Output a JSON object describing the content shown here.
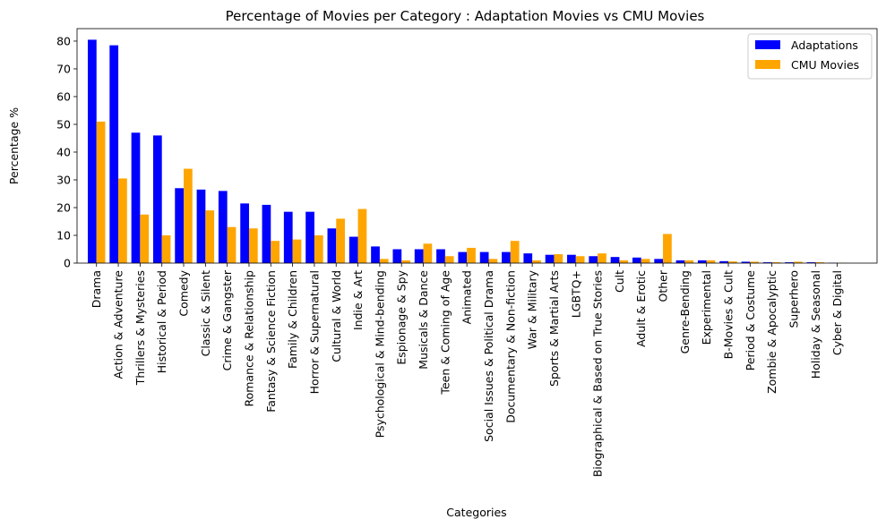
{
  "chart_data": {
    "type": "bar",
    "title": "Percentage of Movies per Category : Adaptation Movies vs CMU Movies",
    "xlabel": "Categories",
    "ylabel": "Percentage %",
    "ylim": [
      0,
      84.5
    ],
    "yticks": [
      0,
      10,
      20,
      30,
      40,
      50,
      60,
      70,
      80
    ],
    "grid": false,
    "legend_position": "top-right",
    "categories": [
      "Drama",
      "Action & Adventure",
      "Thrillers & Mysteries",
      "Historical & Period",
      "Comedy",
      "Classic & Silent",
      "Crime & Gangster",
      "Romance & Relationship",
      "Fantasy & Science Fiction",
      "Family & Children",
      "Horror & Supernatural",
      "Cultural & World",
      "Indie & Art",
      "Psychological & Mind-bending",
      "Espionage & Spy",
      "Musicals & Dance",
      "Teen & Coming of Age",
      "Animated",
      "Social Issues & Political Drama",
      "Documentary & Non-fiction",
      "War & Military",
      "Sports & Martial Arts",
      "LGBTQ+",
      "Biographical & Based on True Stories",
      "Cult",
      "Adult & Erotic",
      "Other",
      "Genre-Bending",
      "Experimental",
      "B-Movies & Cult",
      "Period & Costume",
      "Zombie & Apocalyptic",
      "Superhero",
      "Holiday & Seasonal",
      "Cyber & Digital"
    ],
    "series": [
      {
        "name": "Adaptations",
        "color": "#0000ff",
        "values": [
          80.5,
          78.5,
          47.0,
          46.0,
          27.0,
          26.5,
          26.0,
          21.5,
          21.0,
          18.5,
          18.5,
          12.5,
          9.5,
          6.0,
          5.0,
          5.0,
          5.0,
          4.0,
          4.0,
          4.0,
          3.5,
          3.0,
          3.0,
          2.5,
          2.2,
          2.0,
          1.5,
          1.0,
          1.0,
          0.7,
          0.5,
          0.3,
          0.3,
          0.3,
          0.1
        ]
      },
      {
        "name": "CMU Movies",
        "color": "#ffa500",
        "values": [
          51.0,
          30.5,
          17.5,
          10.0,
          34.0,
          19.0,
          13.0,
          12.5,
          8.0,
          8.5,
          10.0,
          16.0,
          19.5,
          1.5,
          1.0,
          7.0,
          2.5,
          5.5,
          1.5,
          8.0,
          1.0,
          3.2,
          2.5,
          3.5,
          1.0,
          1.5,
          10.5,
          1.0,
          1.0,
          0.6,
          0.5,
          0.3,
          0.5,
          0.3,
          0.1
        ]
      }
    ]
  }
}
